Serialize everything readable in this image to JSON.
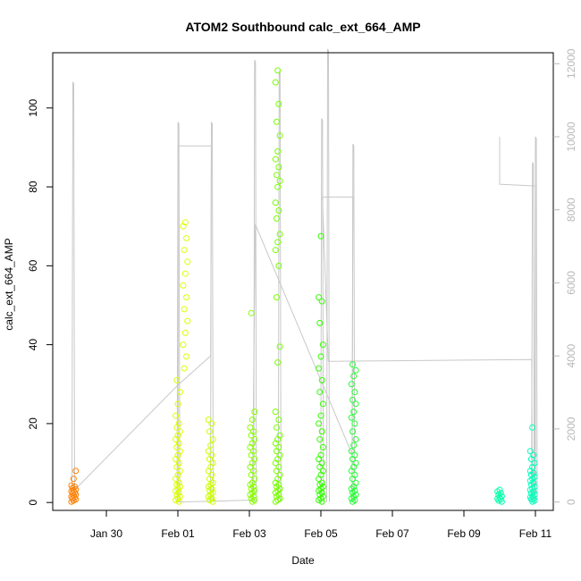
{
  "chart_data": {
    "type": "scatter",
    "title": "ATOM2 Southbound calc_ext_664_AMP",
    "xlabel": "Date",
    "ylabel": "calc_ext_664_AMP",
    "x_unit": "date",
    "xlim": [
      "2024-01-28T12:00",
      "2024-02-11T12:00"
    ],
    "ylim": [
      -2,
      114
    ],
    "y2lim": [
      -230,
      12300
    ],
    "x_ticks": [
      {
        "label": "Jan 30",
        "value": "2024-01-30T00:00"
      },
      {
        "label": "Feb 01",
        "value": "2024-02-01T00:00"
      },
      {
        "label": "Feb 03",
        "value": "2024-02-03T00:00"
      },
      {
        "label": "Feb 05",
        "value": "2024-02-05T00:00"
      },
      {
        "label": "Feb 07",
        "value": "2024-02-07T00:00"
      },
      {
        "label": "Feb 09",
        "value": "2024-02-09T00:00"
      },
      {
        "label": "Feb 11",
        "value": "2024-02-11T00:00"
      }
    ],
    "y_ticks": [
      0,
      20,
      40,
      60,
      80,
      100
    ],
    "y2_ticks": [
      0,
      2000,
      4000,
      6000,
      8000,
      10000,
      12000
    ],
    "grid": false,
    "series": [
      {
        "axis": "left",
        "marker": "open-circle",
        "clusters": [
          {
            "x": "2024-01-29T02:00",
            "color": "#ff8000",
            "values": [
              0.2,
              0.5,
              0.8,
              1.0,
              1.3,
              1.5,
              1.8,
              2.0,
              2.3,
              2.5,
              2.8,
              3.0,
              3.3,
              3.6,
              4.0,
              4.3,
              6.0,
              8.0
            ]
          },
          {
            "x": "2024-02-01T00:00",
            "color": "#ddff00",
            "values": [
              0.2,
              0.6,
              1.0,
              1.5,
              2.0,
              2.5,
              3.0,
              3.5,
              4.0,
              4.5,
              5.0,
              6.0,
              7.0,
              8.0,
              9.0,
              10.0,
              11.0,
              12.0,
              13.0,
              14.0,
              15.0,
              16.0,
              17.0,
              18.0,
              19.0,
              20.0,
              22.0,
              25.0,
              28.0,
              31.0
            ]
          },
          {
            "x": "2024-02-01T05:00",
            "color": "#ddff00",
            "values": [
              34.0,
              37.0,
              40.0,
              43.0,
              46.0,
              49.0,
              52.0,
              55.0,
              58.0,
              61.0,
              64.0,
              67.0,
              70.0,
              71.0
            ]
          },
          {
            "x": "2024-02-01T22:00",
            "color": "#ccff00",
            "values": [
              0.2,
              0.6,
              1.0,
              1.5,
              2.0,
              2.5,
              3.0,
              3.5,
              4.0,
              4.5,
              5.0,
              6.0,
              7.0,
              8.0,
              9.0,
              10.0,
              11.0,
              12.0,
              13.0,
              14.5,
              16.0,
              18.0,
              20.0,
              21.0
            ]
          },
          {
            "x": "2024-02-03T02:00",
            "color": "#88ff00",
            "values": [
              0.2,
              0.6,
              1.0,
              1.5,
              2.0,
              2.5,
              3.0,
              3.5,
              4.0,
              4.5,
              5.0,
              6.0,
              7.0,
              8.0,
              9.0,
              10.0,
              11.0,
              12.0,
              13.0,
              14.0,
              15.0,
              16.0,
              17.0,
              18.0,
              19.0,
              21.0,
              23.0,
              48.0
            ]
          },
          {
            "x": "2024-02-03T19:00",
            "color": "#77ff00",
            "values": [
              0.2,
              0.6,
              1.0,
              1.5,
              2.0,
              2.5,
              3.0,
              3.5,
              4.0,
              4.5,
              5.0,
              6.0,
              7.0,
              8.0,
              9.0,
              10.0,
              11.0,
              12.0,
              13.0,
              14.0,
              15.0,
              16.0,
              17.0,
              19.0,
              21.0,
              23.0,
              35.5,
              39.5,
              52.0,
              60.0,
              64.0,
              66.0,
              68.0,
              72.0,
              74.0,
              76.0,
              80.0,
              81.5,
              83.0,
              85.0,
              87.0,
              89.0,
              93.0,
              96.5,
              101.0,
              106.5,
              109.5
            ]
          },
          {
            "x": "2024-02-05T00:00",
            "color": "#33ff00",
            "values": [
              0.2,
              0.6,
              1.0,
              1.5,
              2.0,
              2.5,
              3.0,
              3.5,
              4.0,
              4.5,
              5.0,
              6.0,
              7.0,
              8.0,
              9.0,
              10.0,
              11.0,
              12.0,
              14.0,
              16.0,
              18.0,
              20.0,
              22.0,
              25.0,
              28.0,
              31.0,
              34.0,
              37.0,
              40.0,
              45.5,
              51.0,
              52.0,
              67.5
            ]
          },
          {
            "x": "2024-02-05T22:00",
            "color": "#22ff33",
            "values": [
              0.2,
              0.6,
              1.0,
              1.5,
              2.0,
              2.5,
              3.0,
              3.5,
              4.0,
              5.0,
              6.0,
              7.0,
              8.0,
              9.0,
              10.0,
              11.0,
              12.0,
              13.0,
              14.5,
              16.0,
              18.0,
              20.0,
              21.5,
              23.0,
              25.0,
              26.0,
              28.0,
              30.0,
              32.0,
              33.5,
              35.0
            ]
          },
          {
            "x": "2024-02-10T00:00",
            "color": "#00ffaa",
            "values": [
              0.2,
              0.5,
              0.8,
              1.0,
              1.3,
              1.6,
              2.0,
              2.4,
              2.8,
              3.2
            ]
          },
          {
            "x": "2024-02-10T22:00",
            "color": "#00ffbb",
            "values": [
              0.2,
              0.5,
              0.8,
              1.0,
              1.3,
              1.6,
              2.0,
              2.4,
              2.8,
              3.2,
              3.6,
              4.0,
              4.5,
              5.0,
              5.5,
              6.0,
              6.5,
              7.0,
              7.5,
              8.0,
              9.0,
              10.0,
              11.0,
              12.0,
              13.0,
              19.0
            ]
          }
        ]
      },
      {
        "axis": "right",
        "color": "#c8c8c8",
        "style": "line",
        "spikes": [
          {
            "x": "2024-01-29T01:30",
            "base": 0,
            "peak": 11500
          },
          {
            "x": "2024-02-01T00:05",
            "base": 0,
            "peak": 10400
          },
          {
            "x": "2024-02-01T22:30",
            "base": 0,
            "peak": 10400
          },
          {
            "x": "2024-02-03T03:30",
            "base": 0,
            "peak": 12100
          },
          {
            "x": "2024-02-03T20:00",
            "base": 0,
            "peak": 11800
          },
          {
            "x": "2024-02-05T00:30",
            "base": 0,
            "peak": 10500
          },
          {
            "x": "2024-02-05T04:30",
            "base": 0,
            "peak": 12400
          },
          {
            "x": "2024-02-05T21:30",
            "base": 0,
            "peak": 9800
          },
          {
            "x": "2024-02-10T22:00",
            "base": 0,
            "peak": 9300
          },
          {
            "x": "2024-02-11T00:00",
            "base": 0,
            "peak": 10000
          }
        ],
        "path": [
          [
            "2024-01-29T02:00",
            300
          ],
          [
            "2024-02-01T00:00",
            3200
          ],
          [
            "2024-02-01T22:00",
            4000
          ],
          [
            "2024-02-01T22:30",
            9750
          ],
          [
            "2024-02-01T00:10",
            9750
          ],
          [
            "2024-02-01T00:10",
            0
          ],
          [
            "2024-02-03T02:00",
            50
          ],
          [
            "2024-02-03T04:00",
            7600
          ],
          [
            "2024-02-05T21:00",
            1300
          ],
          [
            "2024-02-05T21:30",
            8350
          ],
          [
            "2024-02-05T01:00",
            8350
          ],
          [
            "2024-02-05T05:00",
            3850
          ],
          [
            "2024-02-10T21:30",
            3900
          ],
          [
            "2024-02-10T22:00",
            0
          ]
        ],
        "tail": [
          [
            "2024-02-10T00:00",
            10000
          ],
          [
            "2024-02-10T00:00",
            8700
          ],
          [
            "2024-02-11T00:00",
            8650
          ],
          [
            "2024-02-11T00:00",
            0
          ]
        ]
      }
    ]
  }
}
